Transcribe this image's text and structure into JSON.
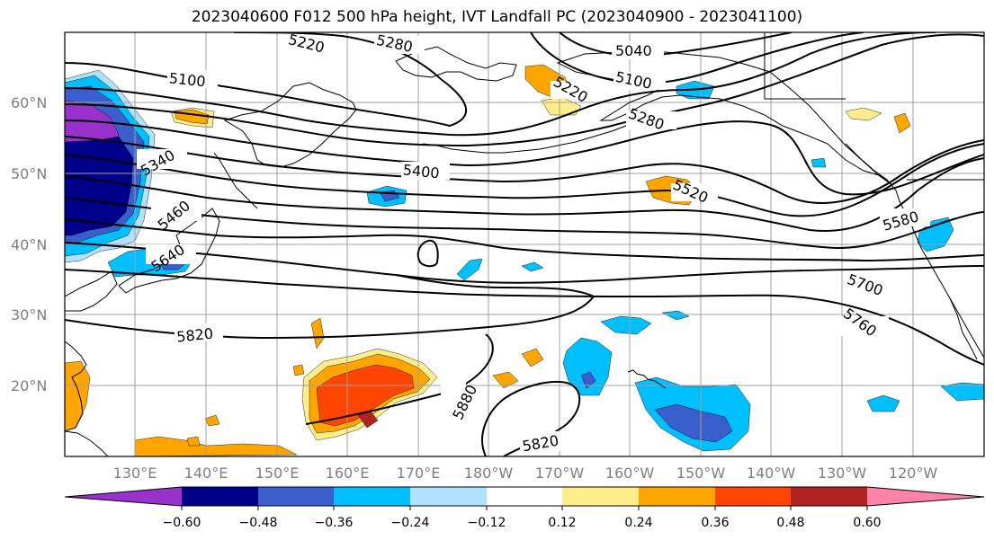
{
  "title": "2023040600 F012 500 hPa height, IVT Landfall PC (2023040900 - 2023041100)",
  "latitude_labels": [
    "60°N",
    "50°N",
    "40°N",
    "30°N",
    "20°N"
  ],
  "longitude_labels": [
    "130°E",
    "140°E",
    "150°E",
    "160°E",
    "170°E",
    "180°W",
    "170°W",
    "160°W",
    "150°W",
    "140°W",
    "130°W",
    "120°W"
  ],
  "contour_labels": [
    "5100",
    "5220",
    "5280",
    "5040",
    "5100",
    "5220",
    "5280",
    "5340",
    "5400",
    "5460",
    "5520",
    "5580",
    "5640",
    "5700",
    "5760",
    "5820",
    "5880",
    "5820"
  ],
  "colorbar": {
    "ticks": [
      "−0.60",
      "−0.48",
      "−0.36",
      "−0.24",
      "−0.12",
      "0.12",
      "0.24",
      "0.36",
      "0.48",
      "0.60"
    ],
    "colors": [
      "#9932cc",
      "#00008b",
      "#3a5fcd",
      "#00bfff",
      "#b0e2ff",
      "#ffffff",
      "#ffec8b",
      "#ffa500",
      "#ff4500",
      "#b22222",
      "#ff82ab"
    ]
  },
  "shading_colors": {
    "neg_060": "#9932cc",
    "neg_048": "#00008b",
    "neg_036": "#3a5fcd",
    "neg_024": "#00bfff",
    "neg_012": "#b0e2ff",
    "pos_012": "#ffec8b",
    "pos_024": "#ffa500",
    "pos_036": "#ff4500",
    "pos_048": "#b22222"
  }
}
